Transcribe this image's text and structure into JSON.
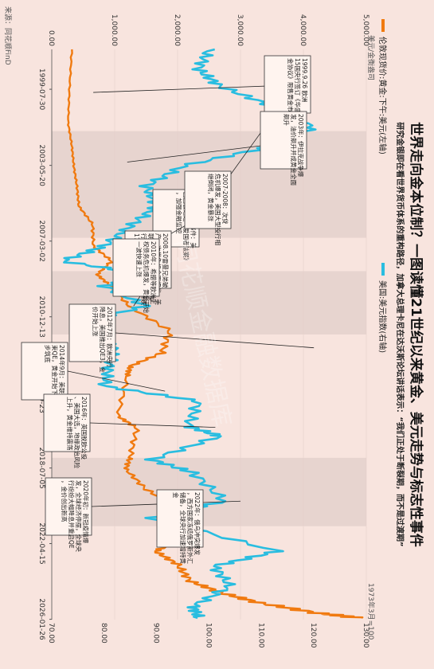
{
  "page": {
    "title": "世界走向金本位制？一图读懂21世纪以来黄金、美元走势与标志性事件",
    "subtitle": "研究金银即在看世界货币体系的重构路径，加拿大总理卡尼在达沃斯论坛讲话表示：“我们正处于断裂期，而不是过渡期”",
    "unit_left": "美元/金衡盎司",
    "note_right": "1973年3月=100",
    "source": "来源：同花顺FinD",
    "watermark": "同花顺金融数据库",
    "legend": [
      {
        "label": "伦敦现货价:黄金:下午:美元(左轴)",
        "color": "#f07a10"
      },
      {
        "label": "美国:美元指数(右轴)",
        "color": "#29bde0"
      }
    ]
  },
  "chart_data": {
    "type": "line",
    "x_tick_labels": [
      "1999-07-30",
      "2003-05-20",
      "2007-03-02",
      "2010-12-13",
      "2014-09-23",
      "2018-07-05",
      "2022-04-15",
      "2026-01-26"
    ],
    "x_range": [
      "1997-08-01",
      "2026-02-01"
    ],
    "y_left": {
      "label": "美元/金衡盎司",
      "range": [
        0,
        5000
      ],
      "ticks": [
        "0.00",
        "1,000.00",
        "2,000.00",
        "3,000.00",
        "4,000.00",
        "5,000.00"
      ]
    },
    "y_right": {
      "label": "1973年3月=100",
      "range": [
        70,
        130
      ],
      "ticks": [
        "70.00",
        "80.00",
        "90.00",
        "100.00",
        "110.00",
        "120.00",
        "130.00"
      ]
    },
    "shaded_periods": [
      [
        "2001-09-01",
        "2007-01-01"
      ],
      [
        "2008-09-01",
        "2011-11-01"
      ],
      [
        "2018-01-01",
        "2021-06-01"
      ]
    ],
    "series": [
      {
        "name": "伦敦现货价:黄金:下午:美元(左轴)",
        "axis": "left",
        "color": "#f07a10",
        "x": [
          "1997-08",
          "1999-08",
          "2001-04",
          "2002-06",
          "2003-06",
          "2004-06",
          "2005-06",
          "2006-05",
          "2007-06",
          "2008-03",
          "2008-11",
          "2009-06",
          "2010-06",
          "2011-09",
          "2012-10",
          "2013-06",
          "2013-12",
          "2015-12",
          "2016-07",
          "2017-12",
          "2018-08",
          "2019-08",
          "2020-08",
          "2021-03",
          "2022-03",
          "2022-09",
          "2023-05",
          "2024-03",
          "2024-10",
          "2025-04",
          "2025-10",
          "2026-01"
        ],
        "values": [
          320,
          280,
          260,
          320,
          350,
          400,
          430,
          650,
          660,
          950,
          720,
          940,
          1230,
          1880,
          1750,
          1250,
          1200,
          1050,
          1350,
          1250,
          1180,
          1500,
          2050,
          1700,
          2000,
          1650,
          2000,
          2200,
          2700,
          3300,
          4200,
          4900
        ]
      },
      {
        "name": "美国:美元指数(右轴)",
        "axis": "right",
        "color": "#29bde0",
        "x": [
          "1997-08",
          "1998-08",
          "1999-06",
          "2000-06",
          "2001-07",
          "2002-06",
          "2003-06",
          "2004-06",
          "2005-06",
          "2006-06",
          "2007-06",
          "2008-03",
          "2008-11",
          "2009-06",
          "2010-06",
          "2011-05",
          "2012-06",
          "2013-06",
          "2014-06",
          "2015-03",
          "2016-06",
          "2016-12",
          "2018-02",
          "2018-10",
          "2020-03",
          "2021-01",
          "2022-09",
          "2023-06",
          "2024-06",
          "2025-06",
          "2026-01"
        ],
        "values": [
          100,
          98,
          102,
          112,
          120,
          112,
          95,
          88,
          90,
          85,
          80,
          72,
          88,
          80,
          88,
          74,
          82,
          81,
          80,
          98,
          96,
          102,
          89,
          97,
          103,
          89,
          113,
          101,
          104,
          97,
          98
        ]
      }
    ]
  },
  "annotations": [
    {
      "text": "1999.9.26 欧洲15国央行签订《华盛顿黄金协议》限售黄金市场",
      "date": "1999-09-26"
    },
    {
      "text": "2001年911事件：美国国会通过《爱国者法案》，加强金融监控",
      "date": "2001-09-11"
    },
    {
      "text": "2003年：伊拉克战争爆发，油价飙升并成黄金全面飙升",
      "date": "2003-03-20"
    },
    {
      "text": "2007-2008：次贷危机爆发，美国大型投行相继倒闭，黄金暴涨",
      "date": "2007-09-01"
    },
    {
      "text": "2008.10雷曼兄弟破产，次贷危机全面爆发，美联储推出QE，同时各国央行大幅降息，黄金一度暴跌17%，10月回升",
      "date": "2008-10-01"
    },
    {
      "text": "2010年：希腊等欧洲主权债务危机爆发，黄金开始一波快速上涨",
      "date": "2010-06-01"
    },
    {
      "text": "2012年7月：欧洲央行降息，美国推出QE3，金价开始上涨",
      "date": "2012-07-01"
    },
    {
      "text": "2014年9月：美联储结束QE，黄金开始下跌，逐步筑底",
      "date": "2014-09-01"
    },
    {
      "text": "2016年：英国脱欧公投、美国大选，地缘政治风险上升，黄金维持震荡",
      "date": "2016-06-23"
    },
    {
      "text": "2020年初：新冠疫情爆发，全球经济停摆，全球央行纷纷大幅降息并重启QE，金价创出新高",
      "date": "2020-03-01"
    },
    {
      "text": "2022年：俄乌冲突爆发，西方国家冻结俄罗斯外汇储备，全球央行加速增持黄金",
      "date": "2022-02-24"
    }
  ]
}
